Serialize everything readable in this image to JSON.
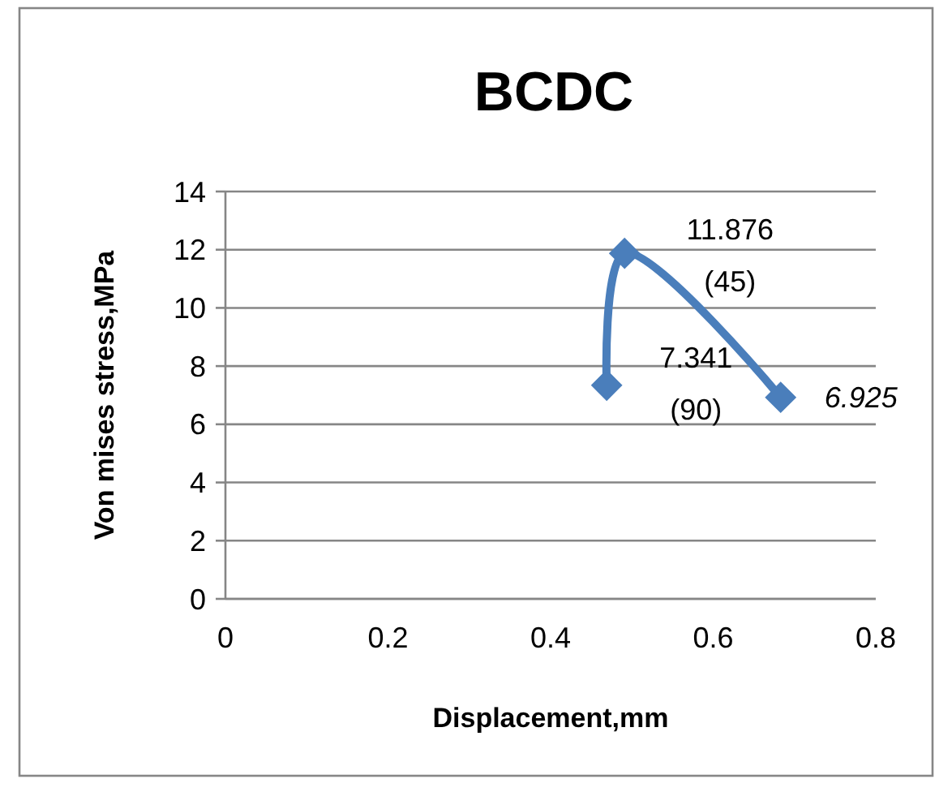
{
  "chart_data": {
    "type": "line",
    "title": "BCDC",
    "xlabel": "Displacement,mm",
    "ylabel": "Von mises stress,MPa",
    "x": [
      0.469,
      0.491,
      0.683
    ],
    "series": [
      {
        "color": "#4a7ebb",
        "values": [
          7.341,
          11.876,
          6.925
        ],
        "value_labels": [
          "7.341\n(90)",
          "11.876\n(45)",
          "6.925"
        ]
      }
    ],
    "xlim": [
      0,
      0.8
    ],
    "xticks": [
      0,
      0.2,
      0.4,
      0.6,
      0.8
    ],
    "ylim": [
      0,
      14
    ],
    "yticks": [
      0,
      2,
      4,
      6,
      8,
      10,
      12,
      14
    ],
    "grid": "y",
    "marker": "diamond"
  }
}
